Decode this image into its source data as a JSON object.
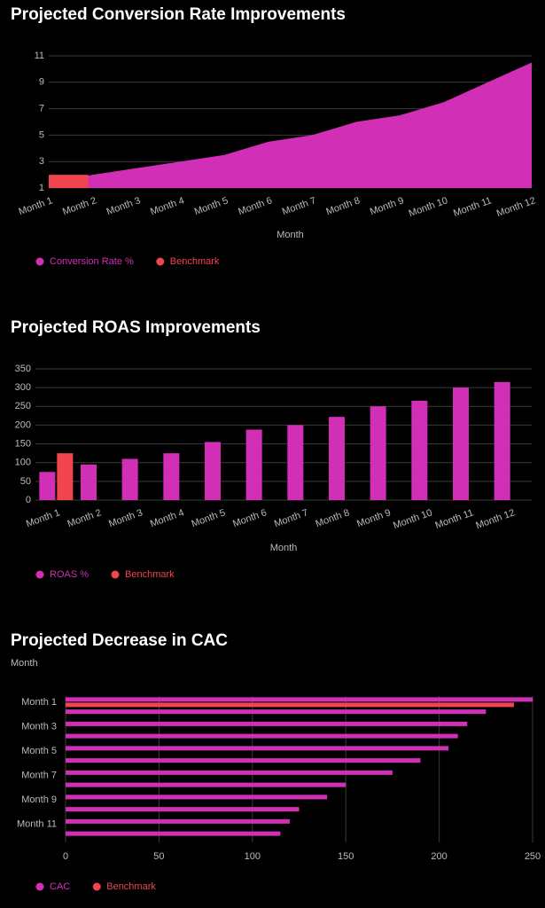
{
  "chart_data": [
    {
      "type": "area",
      "title": "Projected Conversion Rate Improvements",
      "x_label": "Month",
      "categories": [
        "Month 1",
        "Month 2",
        "Month 3",
        "Month 4",
        "Month 5",
        "Month 6",
        "Month 7",
        "Month 8",
        "Month 9",
        "Month 10",
        "Month 11",
        "Month 12"
      ],
      "series": [
        {
          "name": "Conversion Rate %",
          "color": "#d12fb5",
          "values": [
            1.3,
            2,
            2.5,
            3,
            3.5,
            4.5,
            5,
            6,
            6.5,
            7.5,
            9,
            10.5
          ]
        },
        {
          "name": "Benchmark",
          "color": "#f0454f",
          "values": [
            2,
            null,
            null,
            null,
            null,
            null,
            null,
            null,
            null,
            null,
            null,
            null
          ]
        }
      ],
      "ylim": [
        1,
        11
      ],
      "yticks": [
        1,
        3,
        5,
        7,
        9,
        11
      ],
      "grid": true
    },
    {
      "type": "bar",
      "title": "Projected ROAS Improvements",
      "x_label": "Month",
      "categories": [
        "Month 1",
        "Month 2",
        "Month 3",
        "Month 4",
        "Month 5",
        "Month 6",
        "Month 7",
        "Month 8",
        "Month 9",
        "Month 10",
        "Month 11",
        "Month 12"
      ],
      "series": [
        {
          "name": "ROAS %",
          "color": "#d12fb5",
          "values": [
            75,
            95,
            110,
            125,
            155,
            188,
            200,
            222,
            250,
            265,
            300,
            315
          ]
        },
        {
          "name": "Benchmark",
          "color": "#f0454f",
          "values": [
            125,
            null,
            null,
            null,
            null,
            null,
            null,
            null,
            null,
            null,
            null,
            null
          ]
        }
      ],
      "ylim": [
        0,
        350
      ],
      "yticks": [
        0,
        50,
        100,
        150,
        200,
        250,
        300,
        350
      ],
      "grid": true
    },
    {
      "type": "hbar",
      "title": "Projected Decrease in CAC",
      "y_label": "Month",
      "categories": [
        "Month 1",
        null,
        "Month 3",
        null,
        "Month 5",
        null,
        "Month 7",
        null,
        "Month 9",
        null,
        "Month 11",
        null
      ],
      "series": [
        {
          "name": "CAC",
          "color": "#d12fb5",
          "values": [
            250,
            225,
            215,
            210,
            205,
            190,
            175,
            150,
            140,
            125,
            120,
            115
          ]
        },
        {
          "name": "Benchmark",
          "color": "#f0454f",
          "values": [
            240,
            null,
            null,
            null,
            null,
            null,
            null,
            null,
            null,
            null,
            null,
            null
          ]
        }
      ],
      "xlim": [
        0,
        250
      ],
      "xticks": [
        0,
        50,
        100,
        150,
        200,
        250
      ],
      "grid": true
    }
  ]
}
